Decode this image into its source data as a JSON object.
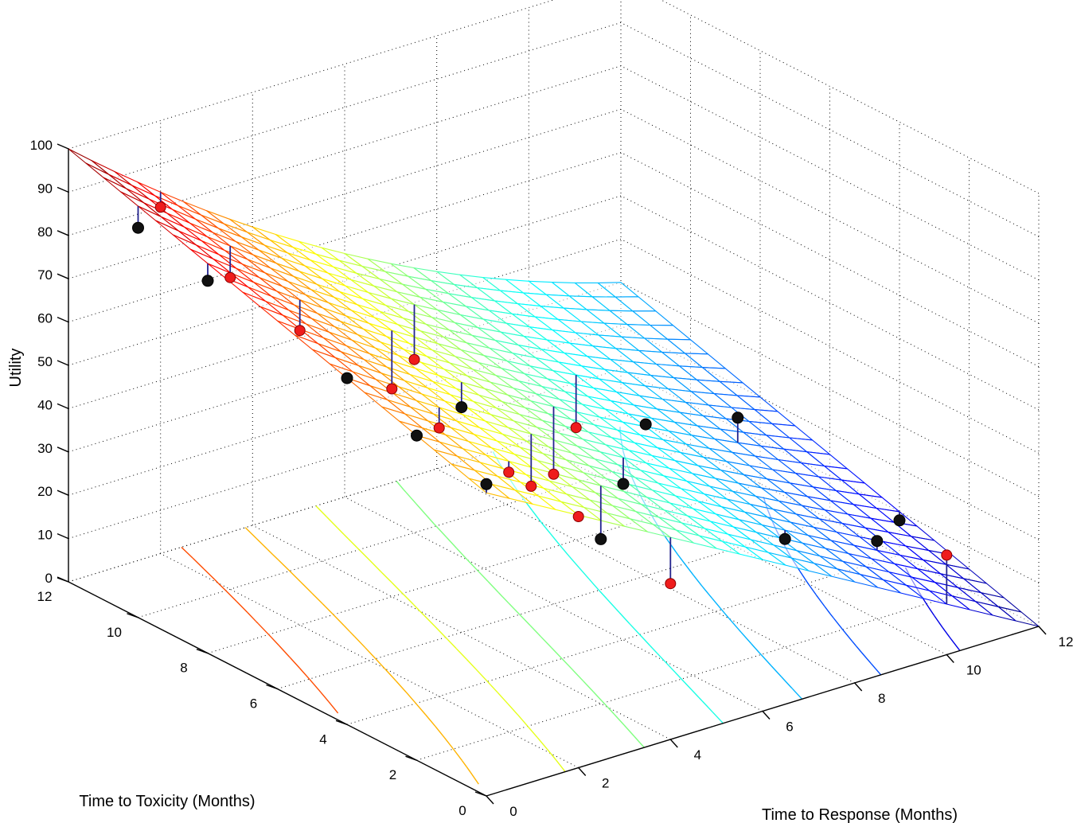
{
  "chart_data": {
    "type": "surface3d",
    "title": "",
    "xlabel": "Time to Response (Months)",
    "ylabel": "Time to Toxicity (Months)",
    "zlabel": "Utility",
    "xlim": [
      0,
      12
    ],
    "ylim": [
      0,
      12
    ],
    "zlim": [
      0,
      100
    ],
    "xticks": [
      0,
      2,
      4,
      6,
      8,
      10,
      12
    ],
    "yticks": [
      0,
      2,
      4,
      6,
      8,
      10,
      12
    ],
    "zticks": [
      0,
      10,
      20,
      30,
      40,
      50,
      60,
      70,
      80,
      90,
      100
    ],
    "grid": true,
    "colormap": "jet",
    "surface_model": "fitted utility surface, highest (100) at response 0 / toxicity 12, lowest (0) at response 12 / toxicity 0",
    "contour_levels": [
      10,
      20,
      30,
      40,
      50,
      60,
      70,
      80
    ],
    "series": [
      {
        "marker": "black-dot",
        "points": [
          {
            "x": 0,
            "y": 10,
            "z": 90
          },
          {
            "x": 0,
            "y": 8,
            "z": 86
          },
          {
            "x": 0,
            "y": 4,
            "z": 80
          },
          {
            "x": 0,
            "y": 2,
            "z": 75
          },
          {
            "x": 0,
            "y": 0,
            "z": 72
          },
          {
            "x": 4,
            "y": 6,
            "z": 52
          },
          {
            "x": 4,
            "y": 2,
            "z": 38
          },
          {
            "x": 6,
            "y": 4,
            "z": 36
          },
          {
            "x": 8,
            "y": 2,
            "z": 25
          },
          {
            "x": 8,
            "y": 6,
            "z": 35
          },
          {
            "x": 10,
            "y": 6,
            "z": 30
          },
          {
            "x": 10,
            "y": 2,
            "z": 18
          },
          {
            "x": 12,
            "y": 4,
            "z": 8
          }
        ]
      },
      {
        "marker": "red-dot",
        "points": [
          {
            "x": 2,
            "y": 12,
            "z": 80
          },
          {
            "x": 2,
            "y": 10,
            "z": 72
          },
          {
            "x": 2,
            "y": 8,
            "z": 68
          },
          {
            "x": 2,
            "y": 4,
            "z": 62
          },
          {
            "x": 2,
            "y": 2,
            "z": 60
          },
          {
            "x": 2,
            "y": 0,
            "z": 58
          },
          {
            "x": 4,
            "y": 8,
            "z": 48
          },
          {
            "x": 4,
            "y": 4,
            "z": 42
          },
          {
            "x": 4,
            "y": 0,
            "z": 36
          },
          {
            "x": 6,
            "y": 10,
            "z": 40
          },
          {
            "x": 6,
            "y": 6,
            "z": 30
          },
          {
            "x": 8,
            "y": 8,
            "z": 26
          },
          {
            "x": 10,
            "y": 0,
            "z": 23
          }
        ]
      }
    ]
  }
}
